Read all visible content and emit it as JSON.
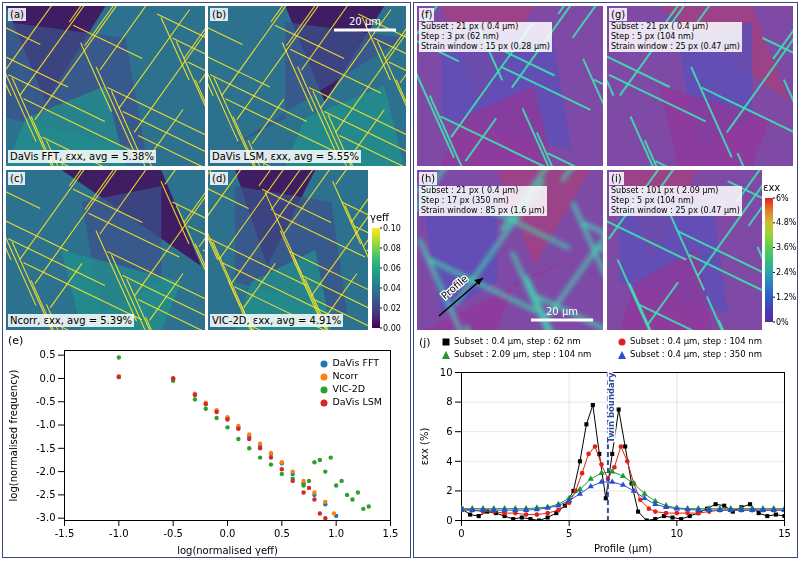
{
  "figure": {
    "left_panels": [
      {
        "label": "(a)",
        "caption": "DaVis FFT, εxx, avg = 5.38%"
      },
      {
        "label": "(b)",
        "caption": "DaVis LSM, εxx, avg = 5.55%",
        "scale_bar": "20 µm"
      },
      {
        "label": "(c)",
        "caption": "Ncorr, εxx, avg = 5.39%"
      },
      {
        "label": "(d)",
        "caption": "VIC-2D, εxx, avg = 4.91%"
      }
    ],
    "left_colorbar": {
      "label": "γeff",
      "range": [
        0,
        0.1
      ],
      "ticks": [
        {
          "value": 0,
          "label": "0.00"
        },
        {
          "value": 0.02,
          "label": "0.02"
        },
        {
          "value": 0.04,
          "label": "0.04"
        },
        {
          "value": 0.06,
          "label": "0.06"
        },
        {
          "value": 0.08,
          "label": "0.08"
        },
        {
          "value": 0.1,
          "label": "0.10"
        }
      ]
    },
    "right_panels": [
      {
        "label": "(f)",
        "lines": [
          "Subset : 21 px ( 0.4 µm)",
          "Step : 3 px (62 nm)",
          "Strain window : 15 px (0.28 µm)"
        ]
      },
      {
        "label": "(g)",
        "lines": [
          "Subset : 21 px ( 0.4 µm)",
          "Step : 5 px (104 nm)",
          "Strain window : 25 px (0.47 µm)"
        ]
      },
      {
        "label": "(h)",
        "lines": [
          "Subset : 21 px ( 0.4 µm)",
          "Step : 17 px (350 nm)",
          "Strain window : 85 px (1.6 µm)"
        ],
        "annotation": "Profile",
        "scale_bar": "20 µm"
      },
      {
        "label": "(i)",
        "lines": [
          "Subset : 101 px ( 2.09 µm)",
          "Step : 5 px (104 nm)",
          "Strain window : 25 px (0.47 µm)"
        ]
      }
    ],
    "right_colorbar": {
      "label": "εxx",
      "range": [
        0,
        6
      ],
      "ticks": [
        {
          "value": 0,
          "label": "0%"
        },
        {
          "value": 1.2,
          "label": "1.2%"
        },
        {
          "value": 2.4,
          "label": "2.4%"
        },
        {
          "value": 3.6,
          "label": "3.6%"
        },
        {
          "value": 4.8,
          "label": "4.8%"
        },
        {
          "value": 6,
          "label": "6%"
        }
      ]
    }
  },
  "chart_data": [
    {
      "type": "scatter",
      "panel": "(e)",
      "x_label": "log(normalised γeff)",
      "y_label": "log(normalised frequency)",
      "xlim": [
        -1.5,
        1.5
      ],
      "xticks": [
        -1.5,
        {
          "value": -1,
          "label": "-1.0"
        },
        -0.5,
        {
          "value": 0,
          "label": "0.0"
        },
        0.5,
        {
          "value": 1,
          "label": "1.0"
        },
        1.5
      ],
      "ylim": [
        -3.05,
        0.6
      ],
      "yticks": [
        {
          "value": -3,
          "label": "-3.0"
        },
        -2.5,
        {
          "value": -2,
          "label": "-2.0"
        },
        -1.5,
        {
          "value": -1,
          "label": "-1.0"
        },
        -0.5,
        {
          "value": 0,
          "label": "0.0"
        },
        0.5
      ],
      "grid": false,
      "legend": "top-right",
      "series": [
        {
          "name": "DaVis FFT",
          "color": "#1f77b4",
          "marker": "circle",
          "x": [
            -1.0,
            -0.5,
            -0.3,
            -0.2,
            -0.1,
            0.0,
            0.1,
            0.2,
            0.3,
            0.4,
            0.5,
            0.6,
            0.7,
            0.8,
            0.9,
            1.0
          ],
          "values": [
            0.03,
            0.0,
            -0.35,
            -0.55,
            -0.7,
            -0.85,
            -1.05,
            -1.25,
            -1.45,
            -1.62,
            -1.82,
            -2.05,
            -2.25,
            -2.5,
            -2.7,
            -2.95
          ]
        },
        {
          "name": "Ncorr",
          "color": "#ff7f0e",
          "marker": "circle",
          "x": [
            -1.0,
            -0.5,
            -0.3,
            -0.2,
            -0.1,
            0.0,
            0.1,
            0.2,
            0.3,
            0.4,
            0.5,
            0.6,
            0.7,
            0.8,
            0.9,
            0.98
          ],
          "values": [
            0.05,
            0.0,
            -0.33,
            -0.52,
            -0.68,
            -0.83,
            -1.02,
            -1.2,
            -1.4,
            -1.6,
            -1.8,
            -2.0,
            -2.2,
            -2.45,
            -2.65,
            -2.9
          ]
        },
        {
          "name": "VIC-2D",
          "color": "#2ca02c",
          "marker": "circle",
          "x": [
            -1.0,
            -0.5,
            -0.3,
            -0.2,
            -0.1,
            0.0,
            0.1,
            0.2,
            0.3,
            0.4,
            0.5,
            0.6,
            0.7,
            0.75,
            0.8,
            0.85,
            0.9,
            0.95,
            1.0,
            1.05,
            1.1,
            1.15,
            1.2,
            1.25,
            1.3
          ],
          "values": [
            0.45,
            -0.05,
            -0.45,
            -0.65,
            -0.85,
            -1.05,
            -1.3,
            -1.5,
            -1.7,
            -1.85,
            -2.05,
            -2.15,
            -2.3,
            -2.2,
            -1.8,
            -1.75,
            -2.0,
            -1.7,
            -2.3,
            -2.2,
            -2.5,
            -2.6,
            -2.45,
            -2.8,
            -2.75
          ]
        },
        {
          "name": "DaVis LSM",
          "color": "#d62728",
          "marker": "circle",
          "x": [
            -1.0,
            -0.5,
            -0.3,
            -0.2,
            -0.1,
            0.0,
            0.1,
            0.2,
            0.3,
            0.4,
            0.5,
            0.6,
            0.7,
            0.75,
            0.8,
            0.85,
            0.9
          ],
          "values": [
            0.03,
            0.0,
            -0.35,
            -0.55,
            -0.72,
            -0.88,
            -1.08,
            -1.3,
            -1.5,
            -1.7,
            -1.95,
            -2.2,
            -2.45,
            -2.35,
            -2.6,
            -2.9,
            -3.0
          ]
        }
      ]
    },
    {
      "type": "line",
      "panel": "(j)",
      "x_label": "Profile (µm)",
      "y_label": "εxx (%)",
      "xlim": [
        0,
        15
      ],
      "xticks": [
        0,
        5,
        10,
        15
      ],
      "ylim": [
        0,
        10
      ],
      "yticks": [
        0,
        2,
        4,
        6,
        8,
        10
      ],
      "grid": true,
      "legend": "top",
      "annotations": [
        {
          "text": "Twin boundary",
          "x": 6.8
        }
      ],
      "series": [
        {
          "name": "Subset : 0.4 µm, step : 62 nm",
          "color": "#000000",
          "marker": "square",
          "x": [
            0,
            0.4,
            0.8,
            1.2,
            1.6,
            2.0,
            2.4,
            2.8,
            3.2,
            3.6,
            4.0,
            4.4,
            4.8,
            5.2,
            5.5,
            5.8,
            6.1,
            6.4,
            6.7,
            7.0,
            7.3,
            7.6,
            7.9,
            8.2,
            8.6,
            9.0,
            9.4,
            9.8,
            10.2,
            10.6,
            11.0,
            11.4,
            11.8,
            12.2,
            12.6,
            13.0,
            13.4,
            13.8,
            14.2,
            14.6,
            15.0
          ],
          "values": [
            0.8,
            0.4,
            0.3,
            0.6,
            0.5,
            0.3,
            0.1,
            0.2,
            0.1,
            0.0,
            0.2,
            0.5,
            1.0,
            2.0,
            4.0,
            6.5,
            7.8,
            4.5,
            1.5,
            4.5,
            7.5,
            5.0,
            2.5,
            0.6,
            0.0,
            0.1,
            0.3,
            0.2,
            0.1,
            0.3,
            0.5,
            0.8,
            1.1,
            1.0,
            0.6,
            0.9,
            1.1,
            0.5,
            0.3,
            0.4,
            0.3
          ]
        },
        {
          "name": "Subset : 0.4 µm, step : 104 nm",
          "color": "#e0201b",
          "marker": "circle",
          "x": [
            0,
            0.5,
            1,
            1.5,
            2,
            2.5,
            3,
            3.5,
            4,
            4.5,
            5,
            5.3,
            5.6,
            5.9,
            6.2,
            6.5,
            6.8,
            7.1,
            7.4,
            7.7,
            8.0,
            8.3,
            8.7,
            9,
            9.5,
            10,
            10.5,
            11,
            11.5,
            12,
            12.5,
            13,
            13.5,
            14,
            14.5,
            15
          ],
          "values": [
            0.8,
            0.7,
            0.6,
            0.6,
            0.5,
            0.5,
            0.4,
            0.4,
            0.5,
            0.7,
            1.2,
            2.0,
            3.2,
            4.5,
            5.0,
            3.8,
            2.8,
            3.6,
            5.0,
            4.0,
            2.5,
            1.4,
            0.8,
            0.6,
            0.5,
            0.5,
            0.5,
            0.5,
            0.6,
            0.7,
            0.7,
            0.7,
            0.7,
            0.7,
            0.7,
            0.7
          ]
        },
        {
          "name": "Subset : 2.09 µm, step : 104 nm",
          "color": "#1e9a2e",
          "marker": "triangle",
          "x": [
            0,
            0.5,
            1,
            1.5,
            2,
            2.5,
            3,
            3.5,
            4,
            4.5,
            5,
            5.5,
            6,
            6.5,
            7,
            7.5,
            8,
            8.5,
            9,
            9.5,
            10,
            10.5,
            11,
            11.5,
            12,
            12.5,
            13,
            13.5,
            14,
            14.5,
            15
          ],
          "values": [
            0.8,
            0.8,
            0.8,
            0.8,
            0.8,
            0.8,
            0.8,
            0.85,
            0.9,
            1.1,
            1.5,
            2.1,
            2.8,
            3.2,
            3.3,
            3.0,
            2.5,
            1.8,
            1.3,
            1.0,
            0.85,
            0.8,
            0.8,
            0.8,
            0.8,
            0.8,
            0.8,
            0.8,
            0.8,
            0.8,
            0.8
          ]
        },
        {
          "name": "Subset : 0.4 µm, step : 350 nm",
          "color": "#2a4fd0",
          "marker": "triangle",
          "x": [
            0,
            0.5,
            1,
            1.5,
            2,
            2.5,
            3,
            3.5,
            4,
            4.5,
            5,
            5.5,
            6,
            6.5,
            7,
            7.5,
            8,
            8.5,
            9,
            9.5,
            10,
            10.5,
            11,
            11.5,
            12,
            12.5,
            13,
            13.5,
            14,
            14.5,
            15
          ],
          "values": [
            0.7,
            0.7,
            0.7,
            0.7,
            0.7,
            0.7,
            0.7,
            0.75,
            0.85,
            1.0,
            1.35,
            1.8,
            2.3,
            2.6,
            2.6,
            2.4,
            2.0,
            1.5,
            1.1,
            0.9,
            0.8,
            0.75,
            0.7,
            0.7,
            0.7,
            0.7,
            0.7,
            0.7,
            0.7,
            0.7,
            0.7
          ]
        }
      ]
    }
  ]
}
